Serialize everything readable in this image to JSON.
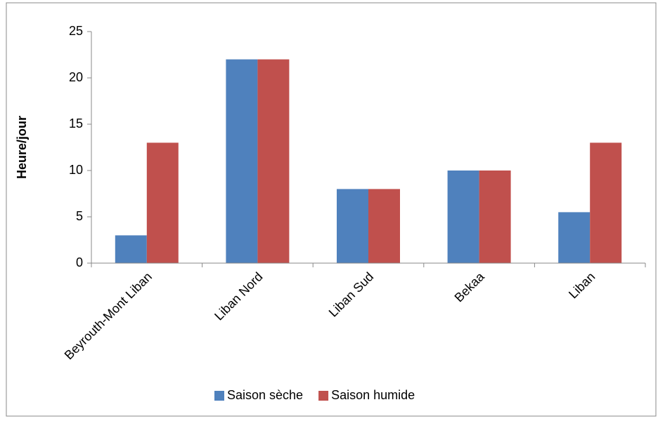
{
  "chart_data": {
    "type": "bar",
    "y_label": "Heure/jour",
    "categories": [
      "Beyrouth-Mont Liban",
      "Liban Nord",
      "Liban Sud",
      "Bekaa",
      "Liban"
    ],
    "series": [
      {
        "name": "Saison sèche",
        "color": "#4f81bd",
        "values": [
          3,
          22,
          8,
          10,
          5.5
        ]
      },
      {
        "name": "Saison humide",
        "color": "#c0504d",
        "values": [
          13,
          22,
          8,
          10,
          13
        ]
      }
    ],
    "ylim": [
      0,
      25
    ],
    "yticks": [
      0,
      5,
      10,
      15,
      20,
      25
    ],
    "grid": false,
    "legend": "bottom"
  }
}
